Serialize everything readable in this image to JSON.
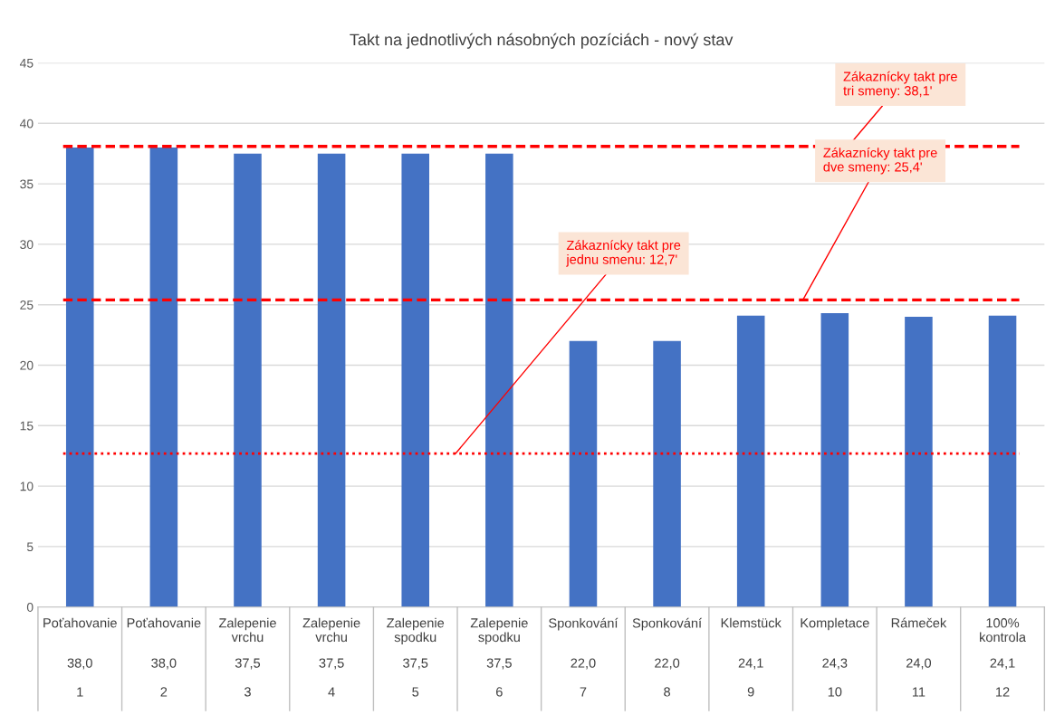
{
  "chart_data": {
    "type": "bar",
    "title": "Takt na jednotlivých násobných pozíciách - nový stav",
    "categories": [
      "Poťahovanie\n1",
      "Poťahovanie\n2",
      "Zalepenie\nvrchu\n3",
      "Zalepenie\nvrchu\n4",
      "Zalepenie\nspodku\n5",
      "Zalepenie\nspodku\n6",
      "Sponkování\n7",
      "Sponkování\n8",
      "Klemstück\n9",
      "Kompletace\n10",
      "Rámeček\n11",
      "100%\nkontrola\n12"
    ],
    "values": [
      38.0,
      38.0,
      37.5,
      37.5,
      37.5,
      37.5,
      22.0,
      22.0,
      24.1,
      24.3,
      24.0,
      24.1
    ],
    "value_labels": [
      "38,0",
      "38,0",
      "37,5",
      "37,5",
      "37,5",
      "37,5",
      "22,0",
      "22,0",
      "24,1",
      "24,3",
      "24,0",
      "24,1"
    ],
    "color": "#4472c4",
    "ylim": [
      0,
      45
    ],
    "yticks": [
      0,
      5,
      10,
      15,
      20,
      25,
      30,
      35,
      40,
      45
    ],
    "grid": "y",
    "legend": false,
    "ref_lines": [
      {
        "axis": "y",
        "value": 38.1,
        "label": "Zákaznícky takt pre\ntri smeny: 38,1'",
        "color": "#ff0000",
        "line_style": "dashed"
      },
      {
        "axis": "y",
        "value": 25.4,
        "label": "Zákaznícky takt pre\ndve smeny: 25,4'",
        "color": "#ff0000",
        "line_style": "dashed"
      },
      {
        "axis": "y",
        "value": 12.7,
        "label": "Zákaznícky takt pre\njednu smenu: 12,7'",
        "color": "#ff0000",
        "line_style": "dotted"
      }
    ]
  }
}
